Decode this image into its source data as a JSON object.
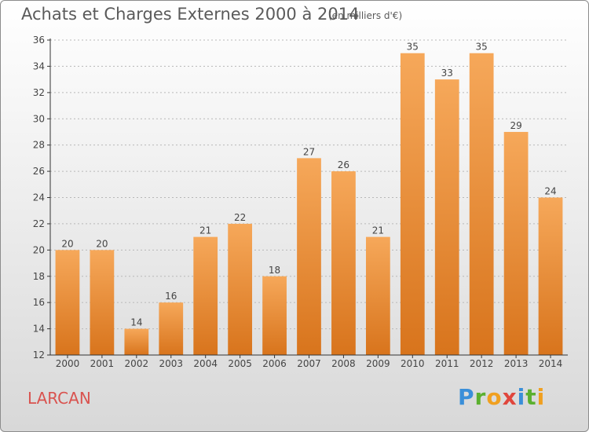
{
  "title": "Achats et Charges Externes 2000 à 2014",
  "subtitle": "(en milliers d'€)",
  "commune": "LARCAN",
  "logo": {
    "letters": [
      {
        "ch": "P",
        "color": "#3a8fd9"
      },
      {
        "ch": "r",
        "color": "#5bb02f"
      },
      {
        "ch": "o",
        "color": "#f0a020"
      },
      {
        "ch": "x",
        "color": "#e0463c"
      },
      {
        "ch": "i",
        "color": "#3a8fd9"
      },
      {
        "ch": "t",
        "color": "#5bb02f"
      },
      {
        "ch": "i",
        "color": "#f0a020"
      }
    ]
  },
  "colors": {
    "bar_top": "#f6a85a",
    "bar_bottom": "#d8741c",
    "grid": "#b8b8b8",
    "axis": "#333333"
  },
  "chart_data": {
    "type": "bar",
    "categories": [
      "2000",
      "2001",
      "2002",
      "2003",
      "2004",
      "2005",
      "2006",
      "2007",
      "2008",
      "2009",
      "2010",
      "2011",
      "2012",
      "2013",
      "2014"
    ],
    "values": [
      20,
      20,
      14,
      16,
      21,
      22,
      18,
      27,
      26,
      21,
      35,
      33,
      35,
      29,
      24
    ],
    "ylim": [
      12,
      36
    ],
    "yticks": [
      12,
      14,
      16,
      18,
      20,
      22,
      24,
      26,
      28,
      30,
      32,
      34,
      36
    ],
    "grid": true,
    "xlabel": "",
    "ylabel": ""
  }
}
